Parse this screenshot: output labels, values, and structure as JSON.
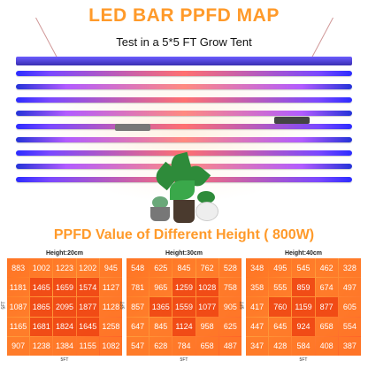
{
  "header": {
    "title": "LED BAR PPFD MAP",
    "subtitle": "Test in a 5*5 FT Grow Tent"
  },
  "section_title": "PPFD Value of Different Height ( 800W)",
  "grids": [
    {
      "label": "Height:20cm",
      "x_axis": "5FT",
      "y_axis": "5FT",
      "rows": [
        [
          "883",
          "1002",
          "1223",
          "1202",
          "945"
        ],
        [
          "1181",
          "1465",
          "1659",
          "1574",
          "1127"
        ],
        [
          "1087",
          "1865",
          "2095",
          "1877",
          "1128"
        ],
        [
          "1165",
          "1681",
          "1824",
          "1645",
          "1258"
        ],
        [
          "907",
          "1238",
          "1384",
          "1155",
          "1082"
        ]
      ]
    },
    {
      "label": "Height:30cm",
      "x_axis": "5FT",
      "y_axis": "5FT",
      "rows": [
        [
          "548",
          "625",
          "845",
          "762",
          "528"
        ],
        [
          "781",
          "965",
          "1259",
          "1028",
          "758"
        ],
        [
          "857",
          "1365",
          "1559",
          "1077",
          "905"
        ],
        [
          "647",
          "845",
          "1124",
          "958",
          "625"
        ],
        [
          "547",
          "628",
          "784",
          "658",
          "487"
        ]
      ]
    },
    {
      "label": "Height:40cm",
      "x_axis": "5FT",
      "y_axis": "5FT",
      "rows": [
        [
          "348",
          "495",
          "545",
          "462",
          "328"
        ],
        [
          "358",
          "555",
          "859",
          "674",
          "497"
        ],
        [
          "417",
          "760",
          "1159",
          "877",
          "605"
        ],
        [
          "447",
          "645",
          "924",
          "658",
          "554"
        ],
        [
          "347",
          "428",
          "584",
          "408",
          "387"
        ]
      ]
    }
  ]
}
